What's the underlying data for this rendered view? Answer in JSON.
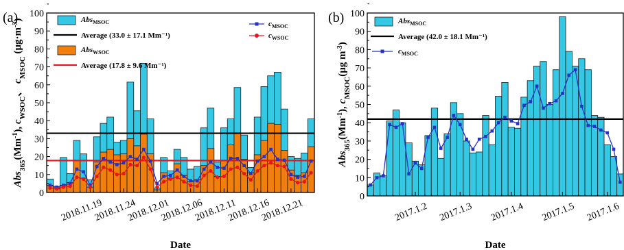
{
  "chart_data": [
    {
      "type": "bar",
      "panel_label": "(a)",
      "xlabel": "Date",
      "ylabel": "Abs365(Mm-1), cWSOC, cMSOC (μg·m-3)",
      "ylim": [
        0,
        100
      ],
      "yticks": [
        "0",
        "10",
        "20",
        "30",
        "40",
        "50",
        "60",
        "70",
        "80",
        "90",
        "100"
      ],
      "x_tick_labels": [
        "2018.11.19",
        "2018.11.24",
        "2018.12.01",
        "2018.12.06",
        "2018.12.11",
        "2018.12.16",
        "2018.12.21"
      ],
      "x_tick_index": [
        6,
        11,
        16,
        21,
        26,
        31,
        36
      ],
      "legend_position": "top",
      "series": [
        {
          "name": "AbsMSOC",
          "kind": "bar",
          "color": "#35C8E4",
          "values": [
            7.5,
            3,
            19.5,
            10.5,
            29,
            21.5,
            7,
            31,
            38.5,
            42,
            28,
            29,
            61.5,
            45.5,
            72,
            41,
            2.5,
            19.5,
            12,
            24,
            19.5,
            13,
            14.5,
            36,
            47,
            17,
            36,
            41,
            58.5,
            32,
            14,
            42,
            59,
            65,
            67,
            46.5,
            20,
            19,
            22,
            41
          ]
        },
        {
          "name": "AbsWSOC",
          "kind": "bar",
          "color": "#F07F0E",
          "values": [
            4,
            2,
            4,
            5.5,
            18,
            8,
            3,
            17,
            22.5,
            24,
            21,
            21.5,
            30,
            26,
            32.5,
            21.5,
            1.5,
            11,
            8,
            16,
            9.5,
            6,
            7,
            15,
            24.5,
            9,
            18,
            26.5,
            33,
            18.5,
            11,
            21,
            29,
            38.5,
            38,
            23.5,
            12.5,
            9.5,
            11,
            25.5
          ]
        },
        {
          "name": "cMSOC",
          "kind": "line",
          "color": "#2433C4",
          "values": [
            4,
            3,
            4,
            5,
            13,
            11.5,
            4,
            14.5,
            19,
            17,
            15.5,
            16.5,
            20,
            18.5,
            24,
            17.5,
            5,
            9,
            9.5,
            12.5,
            9,
            6.5,
            6.5,
            13,
            17,
            14,
            13.5,
            19,
            19,
            15,
            10.5,
            17.5,
            20,
            24,
            18.5,
            18,
            10,
            8.5,
            9,
            17.5
          ]
        },
        {
          "name": "cWSOC",
          "kind": "line",
          "color": "#E8141E",
          "values": [
            2.5,
            2,
            3,
            3.5,
            8.5,
            7.5,
            3,
            9,
            14,
            12.5,
            10,
            10.5,
            15.5,
            15,
            19.5,
            13,
            3,
            6,
            7.5,
            8.5,
            6,
            4,
            3.5,
            9.5,
            12,
            8.5,
            9,
            13,
            14,
            10.5,
            7,
            12,
            15,
            16.5,
            15,
            14.5,
            7.5,
            5.5,
            6,
            11
          ]
        }
      ],
      "reference_lines": [
        {
          "label": "Average (33.0 ± 17.1 Mm⁻¹)",
          "value": 33.0,
          "color": "#000000"
        },
        {
          "label": "Average (17.8 ± 9.6 Mm⁻¹)",
          "value": 17.8,
          "color": "#E8141E"
        }
      ],
      "legend": {
        "left": [
          {
            "base": "Abs",
            "sub": "MSOC",
            "kind": "patch",
            "color": "#35C8E4"
          },
          {
            "text": "Average (33.0 ± 17.1 Mm⁻¹)",
            "kind": "hline",
            "color": "#000000"
          },
          {
            "base": "Abs",
            "sub": "WSOC",
            "kind": "patch",
            "color": "#F07F0E"
          },
          {
            "text": "Average (17.8 ± 9.6 Mm⁻¹)",
            "kind": "hline",
            "color": "#E8141E"
          }
        ],
        "right": [
          {
            "base": "c",
            "sub": "MSOC",
            "kind": "marker",
            "color": "#2433C4"
          },
          {
            "base": "c",
            "sub": "WSOC",
            "kind": "marker",
            "color": "#E8141E"
          }
        ]
      }
    },
    {
      "type": "bar",
      "panel_label": "(b)",
      "xlabel": "Date",
      "ylabel": "Abs365(Mm-1), cMSOC(μg m-3)",
      "ylim": [
        0,
        100
      ],
      "yticks": [
        "0",
        "10",
        "20",
        "30",
        "40",
        "50",
        "60",
        "70",
        "80",
        "90",
        "100"
      ],
      "x_tick_labels": [
        "2017.1.2",
        "2017.1.3",
        "2017.1.4",
        "2017.1.5",
        "2017.1.6"
      ],
      "x_tick_index": [
        7,
        14,
        22,
        30,
        37
      ],
      "legend_position": "top-left",
      "series": [
        {
          "name": "AbsMSOC",
          "kind": "bar",
          "color": "#35C8E4",
          "values": [
            6,
            12.5,
            11,
            41,
            47,
            40,
            29,
            19,
            17,
            33,
            48,
            20.5,
            34,
            51,
            45,
            30,
            23.5,
            24,
            44,
            28,
            54.5,
            62,
            37.5,
            37,
            54,
            63,
            71,
            73.5,
            50,
            69,
            98,
            79,
            71,
            75,
            69,
            44,
            43,
            28,
            21.5,
            12
          ]
        },
        {
          "name": "cMSOC",
          "kind": "line",
          "color": "#2433C4",
          "values": [
            6,
            10,
            11,
            39,
            37.5,
            39.5,
            12,
            18,
            15,
            32,
            37.5,
            26,
            32,
            44,
            39,
            31,
            25.5,
            31,
            32.5,
            35.5,
            40,
            43,
            41,
            39.5,
            49.5,
            51.5,
            60,
            48,
            50.5,
            52,
            56,
            66,
            69,
            49,
            38.5,
            38,
            36,
            34.5,
            25.5,
            7.5
          ]
        }
      ],
      "reference_lines": [
        {
          "label": "Average (42.0 ± 18.1 Mm⁻¹)",
          "value": 42.0,
          "color": "#000000"
        }
      ],
      "legend": {
        "left": [
          {
            "base": "Abs",
            "sub": "MSOC",
            "kind": "patch",
            "color": "#35C8E4"
          },
          {
            "text": "Average (42.0 ± 18.1 Mm⁻¹)",
            "kind": "hline",
            "color": "#000000"
          },
          {
            "base": "c",
            "sub": "MSOC",
            "kind": "marker",
            "color": "#2433C4"
          }
        ],
        "right": []
      }
    }
  ]
}
